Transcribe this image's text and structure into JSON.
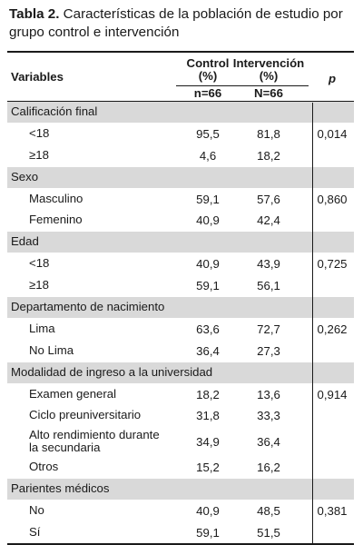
{
  "caption": {
    "label": "Tabla 2.",
    "text": " Características de la población de estudio por grupo control e intervención"
  },
  "header": {
    "variables": "Variables",
    "control_l1": "Control",
    "control_l2": "(%)",
    "intervencion_l1": "Intervención",
    "intervencion_l2": "(%)",
    "p": "p",
    "n_control": "n=66",
    "n_intervencion": "N=66"
  },
  "rows": [
    {
      "kind": "cat",
      "label": "Calificación final"
    },
    {
      "kind": "sub",
      "label": "<18",
      "control": "95,5",
      "intervencion": "81,8",
      "p": "0,014"
    },
    {
      "kind": "sub",
      "label": "≥18",
      "control": "4,6",
      "intervencion": "18,2",
      "p": ""
    },
    {
      "kind": "cat",
      "label": "Sexo"
    },
    {
      "kind": "sub",
      "label": "Masculino",
      "control": "59,1",
      "intervencion": "57,6",
      "p": "0,860"
    },
    {
      "kind": "sub",
      "label": "Femenino",
      "control": "40,9",
      "intervencion": "42,4",
      "p": ""
    },
    {
      "kind": "cat",
      "label": "Edad"
    },
    {
      "kind": "sub",
      "label": "<18",
      "control": "40,9",
      "intervencion": "43,9",
      "p": "0,725"
    },
    {
      "kind": "sub",
      "label": "≥18",
      "control": "59,1",
      "intervencion": "56,1",
      "p": ""
    },
    {
      "kind": "cat",
      "label": "Departamento de nacimiento"
    },
    {
      "kind": "sub",
      "label": "Lima",
      "control": "63,6",
      "intervencion": "72,7",
      "p": "0,262"
    },
    {
      "kind": "sub",
      "label": "No Lima",
      "control": "36,4",
      "intervencion": "27,3",
      "p": ""
    },
    {
      "kind": "cat",
      "label": "Modalidad de ingreso a la universidad"
    },
    {
      "kind": "sub",
      "label": "Examen general",
      "control": "18,2",
      "intervencion": "13,6",
      "p": "0,914"
    },
    {
      "kind": "sub",
      "label": "Ciclo preuniversitario",
      "control": "31,8",
      "intervencion": "33,3",
      "p": ""
    },
    {
      "kind": "sub",
      "tall": true,
      "label_l1": "Alto rendimiento durante",
      "label_l2": "la secundaria",
      "control": "34,9",
      "intervencion": "36,4",
      "p": ""
    },
    {
      "kind": "sub",
      "label": "Otros",
      "control": "15,2",
      "intervencion": "16,2",
      "p": ""
    },
    {
      "kind": "cat",
      "label": "Parientes médicos"
    },
    {
      "kind": "sub",
      "label": "No",
      "control": "40,9",
      "intervencion": "48,5",
      "p": "0,381"
    },
    {
      "kind": "sub",
      "label": "Sí",
      "control": "59,1",
      "intervencion": "51,5",
      "p": ""
    }
  ]
}
